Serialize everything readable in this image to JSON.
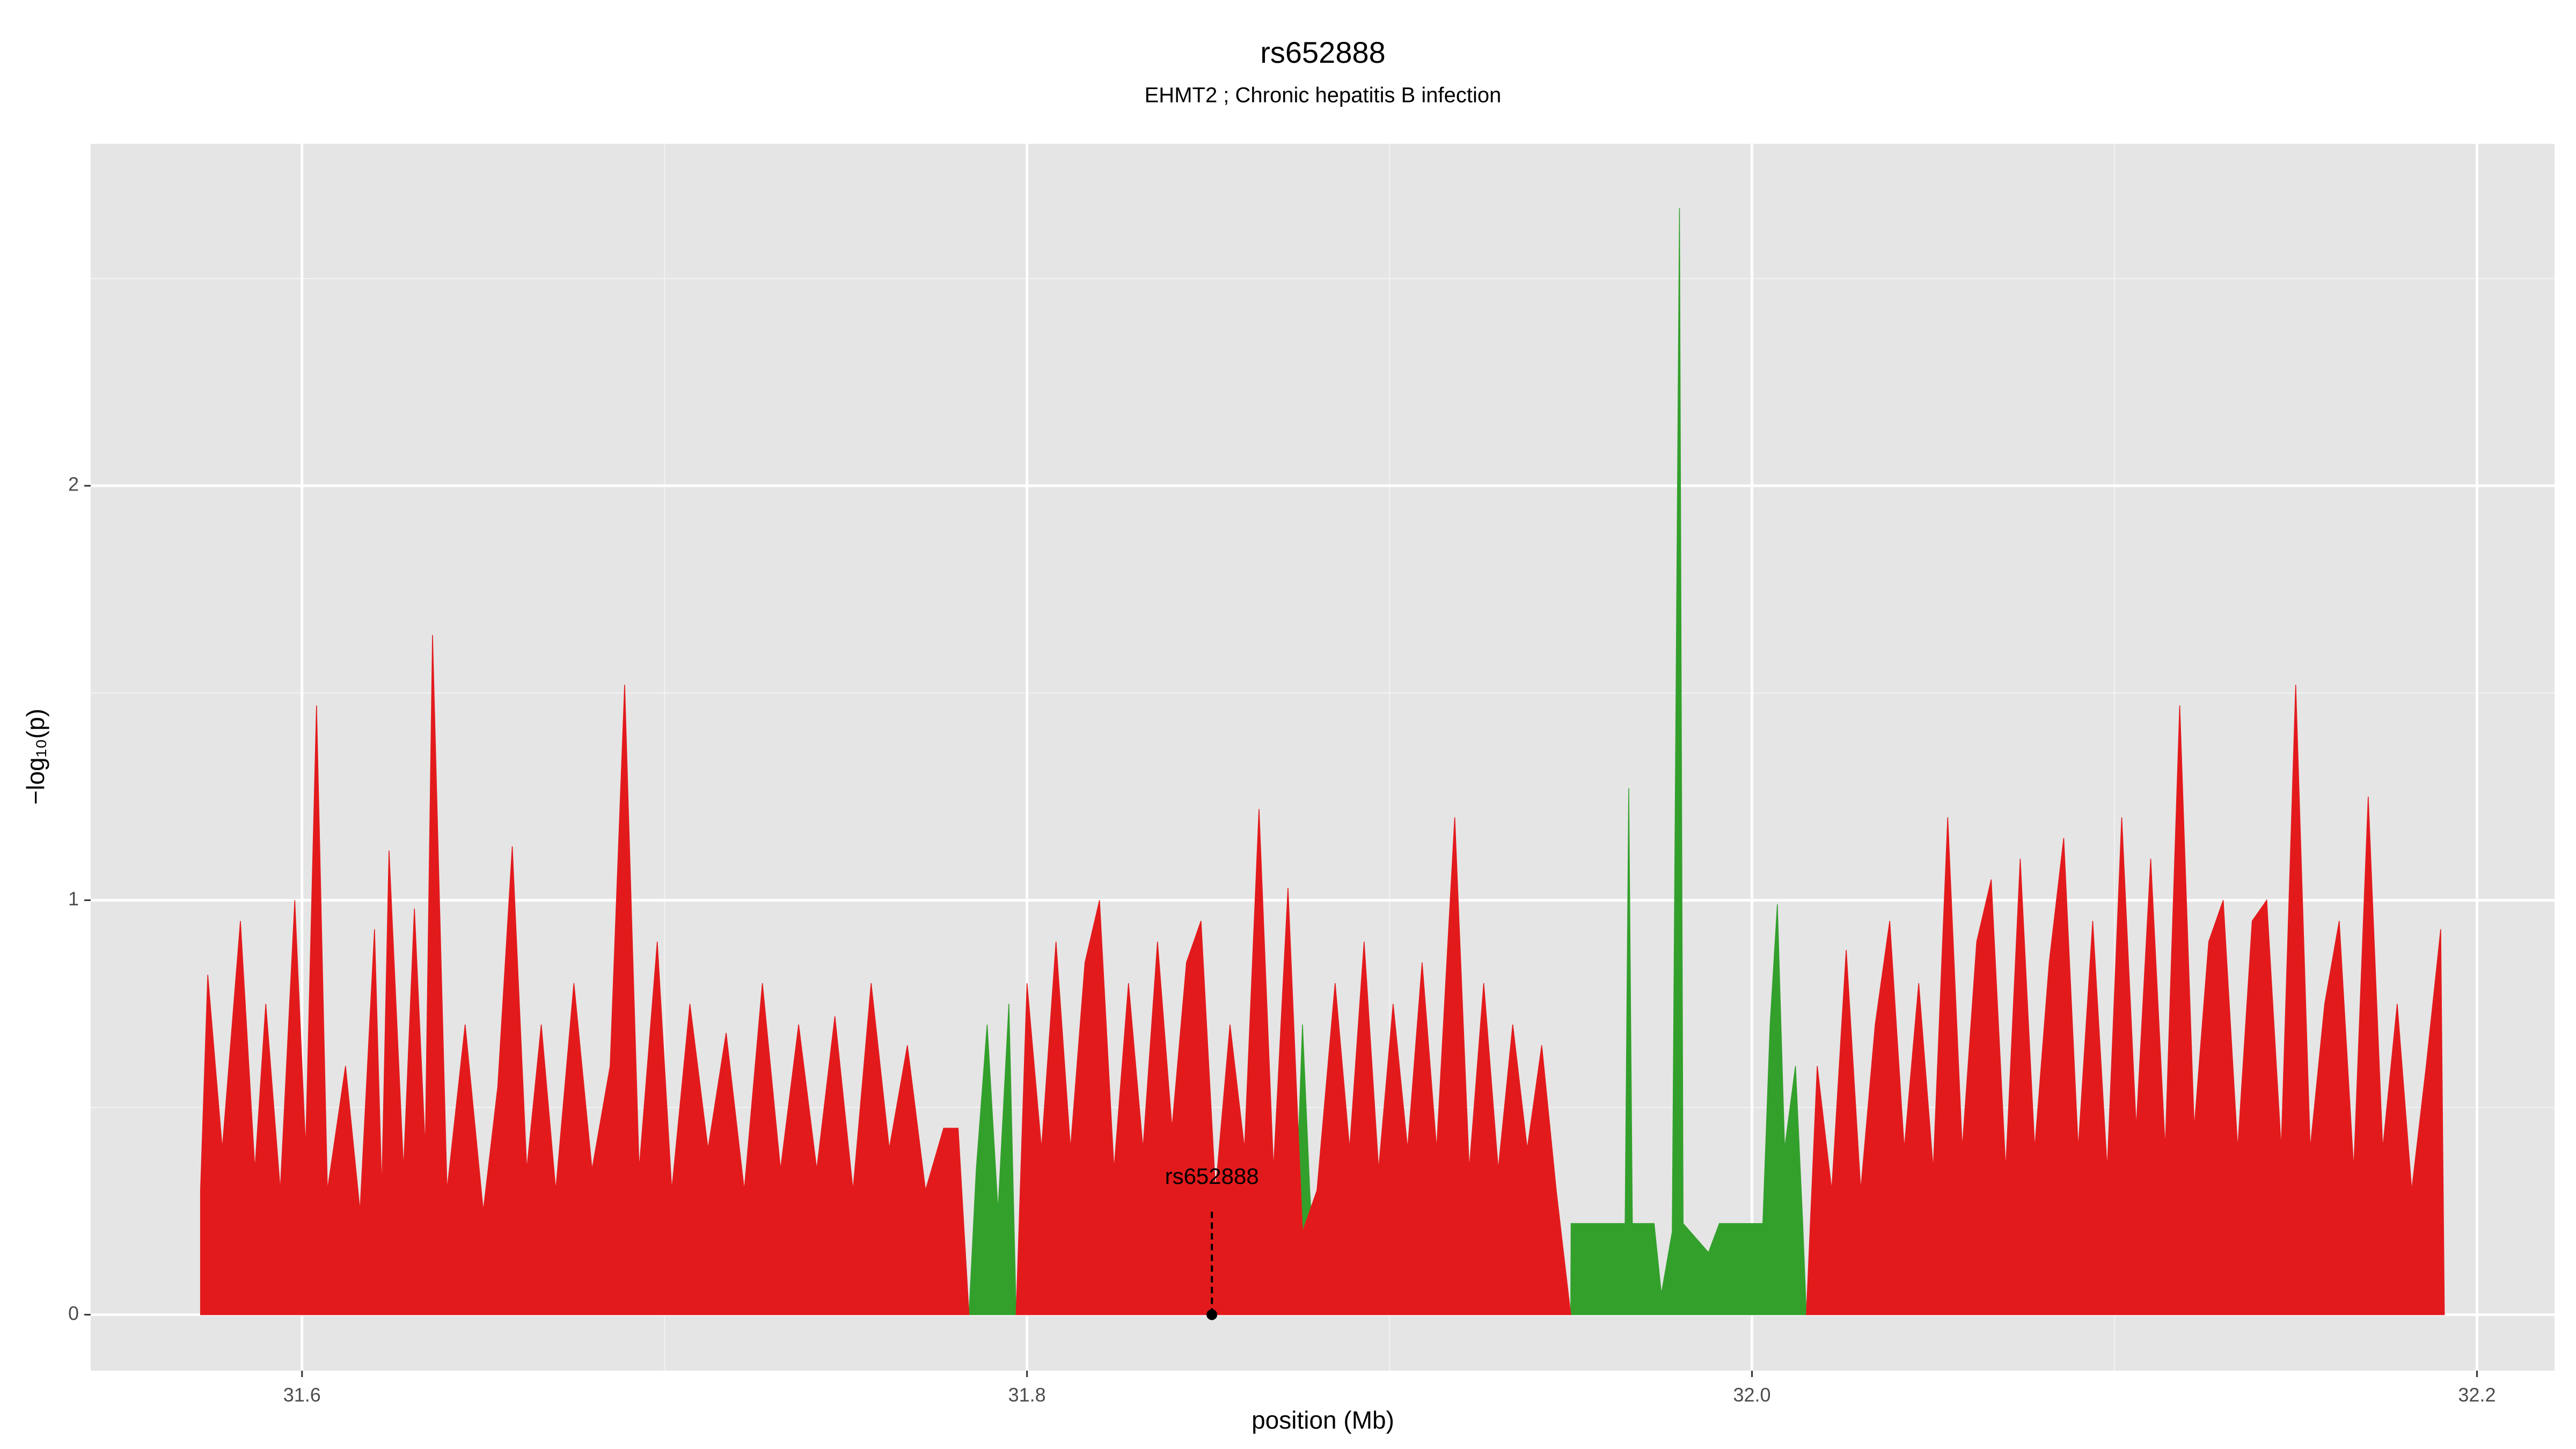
{
  "chart_data": {
    "type": "area",
    "title": "rs652888",
    "subtitle": "EHMT2 ; Chronic hepatitis B infection",
    "xlabel": "position (Mb)",
    "ylabel": "−log₁₀(p)",
    "xlim": [
      31.5417,
      32.2214
    ],
    "ylim": [
      -0.135,
      2.825
    ],
    "xticks": [
      31.6,
      31.8,
      {
        "value": 32,
        "label": "32.0"
      },
      32.2
    ],
    "yticks": [
      0,
      1,
      2
    ],
    "x_minor_ticks": [
      31.7,
      31.9,
      32.1
    ],
    "y_minor_ticks": [
      0.5,
      1.5,
      2.5
    ],
    "grid": true,
    "background": "#e5e5e5",
    "series": [
      {
        "color": "#33a02c",
        "x": [
          31.784,
          31.786,
          31.789,
          31.792,
          31.795,
          31.797,
          null,
          31.87,
          31.872,
          31.874,
          31.876,
          31.878,
          31.88,
          null,
          31.95,
          31.9501,
          31.965,
          31.966,
          31.967,
          31.973,
          31.975,
          31.978,
          31.98,
          31.981,
          31.988,
          31.991,
          32.003,
          32.005,
          32.007,
          32.009,
          32.012,
          32.014,
          32.015
        ],
        "values": [
          0,
          0.35,
          0.7,
          0.25,
          0.75,
          0,
          null,
          0,
          0.55,
          0.2,
          0.7,
          0.3,
          0,
          null,
          0,
          0.22,
          0.22,
          1.27,
          0.22,
          0.22,
          0.05,
          0.2,
          2.67,
          0.22,
          0.15,
          0.22,
          0.22,
          0.7,
          0.99,
          0.4,
          0.6,
          0.22,
          0
        ]
      },
      {
        "color": "#e31a1c",
        "x": [
          31.572,
          31.574,
          31.578,
          31.583,
          31.587,
          31.59,
          31.594,
          31.598,
          31.601,
          31.604,
          31.607,
          31.612,
          31.616,
          31.62,
          31.622,
          31.624,
          31.628,
          31.631,
          31.634,
          31.636,
          31.64,
          31.645,
          31.65,
          31.654,
          31.658,
          31.662,
          31.666,
          31.67,
          31.675,
          31.68,
          31.685,
          31.689,
          31.693,
          31.698,
          31.702,
          31.707,
          31.712,
          31.717,
          31.722,
          31.727,
          31.732,
          31.737,
          31.742,
          31.747,
          31.752,
          31.757,
          31.762,
          31.767,
          31.772,
          31.777,
          31.781,
          31.784,
          null,
          31.797,
          31.8,
          31.804,
          31.808,
          31.812,
          31.816,
          31.82,
          31.824,
          31.828,
          31.832,
          31.836,
          31.84,
          31.844,
          31.848,
          31.852,
          31.856,
          31.86,
          31.864,
          31.868,
          31.872,
          31.876,
          31.88,
          31.885,
          31.889,
          31.893,
          31.897,
          31.901,
          31.905,
          31.909,
          31.913,
          31.918,
          31.922,
          31.926,
          31.93,
          31.934,
          31.938,
          31.942,
          31.946,
          31.95,
          null,
          32.015,
          32.018,
          32.022,
          32.026,
          32.03,
          32.034,
          32.038,
          32.042,
          32.046,
          32.05,
          32.054,
          32.058,
          32.062,
          32.066,
          32.07,
          32.074,
          32.078,
          32.082,
          32.086,
          32.09,
          32.094,
          32.098,
          32.102,
          32.106,
          32.11,
          32.114,
          32.118,
          32.122,
          32.126,
          32.13,
          32.134,
          32.138,
          32.142,
          32.146,
          32.15,
          32.154,
          32.158,
          32.162,
          32.166,
          32.17,
          32.174,
          32.178,
          32.182,
          32.186,
          32.19,
          32.191
        ],
        "values": [
          0.3,
          0.82,
          0.4,
          0.95,
          0.35,
          0.75,
          0.3,
          1.0,
          0.4,
          1.47,
          0.3,
          0.6,
          0.25,
          0.93,
          0.3,
          1.12,
          0.35,
          0.98,
          0.4,
          1.64,
          0.3,
          0.7,
          0.25,
          0.55,
          1.13,
          0.35,
          0.7,
          0.3,
          0.8,
          0.35,
          0.6,
          1.52,
          0.35,
          0.9,
          0.3,
          0.75,
          0.4,
          0.68,
          0.3,
          0.8,
          0.35,
          0.7,
          0.35,
          0.72,
          0.3,
          0.8,
          0.4,
          0.65,
          0.3,
          0.45,
          0.45,
          0,
          null,
          0,
          0.8,
          0.4,
          0.9,
          0.4,
          0.85,
          1.0,
          0.35,
          0.8,
          0.4,
          0.9,
          0.45,
          0.85,
          0.95,
          0.3,
          0.7,
          0.4,
          1.22,
          0.35,
          1.03,
          0.2,
          0.3,
          0.8,
          0.4,
          0.9,
          0.35,
          0.75,
          0.4,
          0.85,
          0.4,
          1.2,
          0.35,
          0.8,
          0.35,
          0.7,
          0.4,
          0.65,
          0.3,
          0,
          null,
          0,
          0.6,
          0.3,
          0.88,
          0.3,
          0.7,
          0.95,
          0.4,
          0.8,
          0.35,
          1.2,
          0.4,
          0.9,
          1.05,
          0.35,
          1.1,
          0.4,
          0.85,
          1.15,
          0.4,
          0.95,
          0.35,
          1.2,
          0.45,
          1.1,
          0.4,
          1.47,
          0.45,
          0.9,
          1.0,
          0.4,
          0.95,
          1.0,
          0.4,
          1.52,
          0.4,
          0.75,
          0.95,
          0.35,
          1.25,
          0.4,
          0.75,
          0.3,
          0.6,
          0.93,
          0
        ]
      }
    ],
    "annotation": {
      "label": "rs652888",
      "x": 31.851,
      "y": 0
    }
  }
}
